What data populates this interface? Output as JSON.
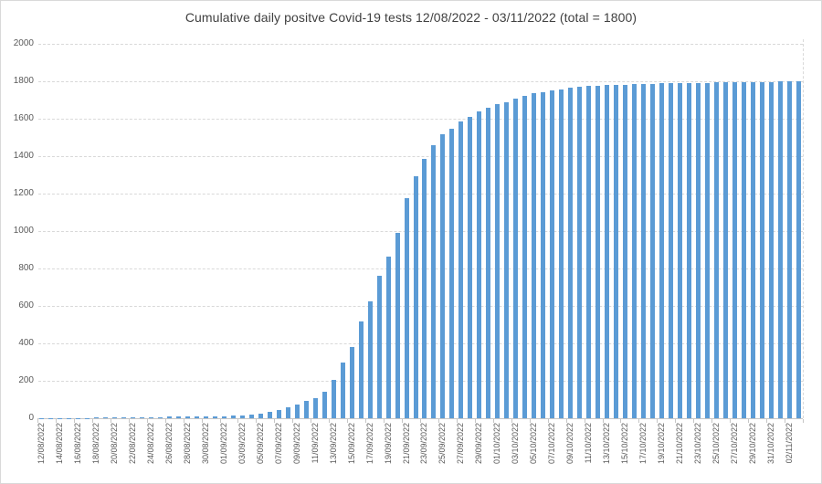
{
  "title": "Cumulative daily positve Covid-19 tests 12/08/2022 - 03/11/2022 (total = 1800)",
  "colors": {
    "bar": "#5b9bd5",
    "gridline": "#d9d9d9",
    "axis_line": "#c6c6c6",
    "axis_label": "#595959",
    "title": "#404040",
    "frame_border": "#d9d9d9"
  },
  "chart_data": {
    "type": "bar",
    "title": "Cumulative daily positve Covid-19 tests 12/08/2022 - 03/11/2022 (total = 1800)",
    "xlabel": "",
    "ylabel": "",
    "ylim": [
      0,
      2000
    ],
    "y_tick_step": 200,
    "grid": true,
    "legend": false,
    "x_label_every": 2,
    "categories": [
      "12/08/2022",
      "13/08/2022",
      "14/08/2022",
      "15/08/2022",
      "16/08/2022",
      "17/08/2022",
      "18/08/2022",
      "19/08/2022",
      "20/08/2022",
      "21/08/2022",
      "22/08/2022",
      "23/08/2022",
      "24/08/2022",
      "25/08/2022",
      "26/08/2022",
      "27/08/2022",
      "28/08/2022",
      "29/08/2022",
      "30/08/2022",
      "31/08/2022",
      "01/09/2022",
      "02/09/2022",
      "03/09/2022",
      "04/09/2022",
      "05/09/2022",
      "06/09/2022",
      "07/09/2022",
      "08/09/2022",
      "09/09/2022",
      "10/09/2022",
      "11/09/2022",
      "12/09/2022",
      "13/09/2022",
      "14/09/2022",
      "15/09/2022",
      "16/09/2022",
      "17/09/2022",
      "18/09/2022",
      "19/09/2022",
      "20/09/2022",
      "21/09/2022",
      "22/09/2022",
      "23/09/2022",
      "24/09/2022",
      "25/09/2022",
      "26/09/2022",
      "27/09/2022",
      "28/09/2022",
      "29/09/2022",
      "30/09/2022",
      "01/10/2022",
      "02/10/2022",
      "03/10/2022",
      "04/10/2022",
      "05/10/2022",
      "06/10/2022",
      "07/10/2022",
      "08/10/2022",
      "09/10/2022",
      "10/10/2022",
      "11/10/2022",
      "12/10/2022",
      "13/10/2022",
      "14/10/2022",
      "15/10/2022",
      "16/10/2022",
      "17/10/2022",
      "18/10/2022",
      "19/10/2022",
      "20/10/2022",
      "21/10/2022",
      "22/10/2022",
      "23/10/2022",
      "24/10/2022",
      "25/10/2022",
      "26/10/2022",
      "27/10/2022",
      "28/10/2022",
      "29/10/2022",
      "30/10/2022",
      "31/10/2022",
      "01/11/2022",
      "02/11/2022",
      "03/11/2022"
    ],
    "values": [
      1,
      1,
      1,
      2,
      2,
      2,
      3,
      3,
      4,
      4,
      5,
      5,
      6,
      7,
      8,
      8,
      9,
      9,
      10,
      10,
      11,
      13,
      16,
      21,
      26,
      32,
      42,
      57,
      75,
      92,
      107,
      140,
      205,
      299,
      379,
      517,
      623,
      761,
      863,
      992,
      1174,
      1294,
      1387,
      1460,
      1515,
      1546,
      1585,
      1610,
      1637,
      1657,
      1676,
      1689,
      1706,
      1723,
      1738,
      1741,
      1753,
      1758,
      1764,
      1769,
      1774,
      1777,
      1779,
      1780,
      1782,
      1784,
      1786,
      1787,
      1788,
      1789,
      1790,
      1791,
      1792,
      1792,
      1793,
      1793,
      1794,
      1794,
      1795,
      1796,
      1797,
      1798,
      1799,
      1800
    ]
  }
}
